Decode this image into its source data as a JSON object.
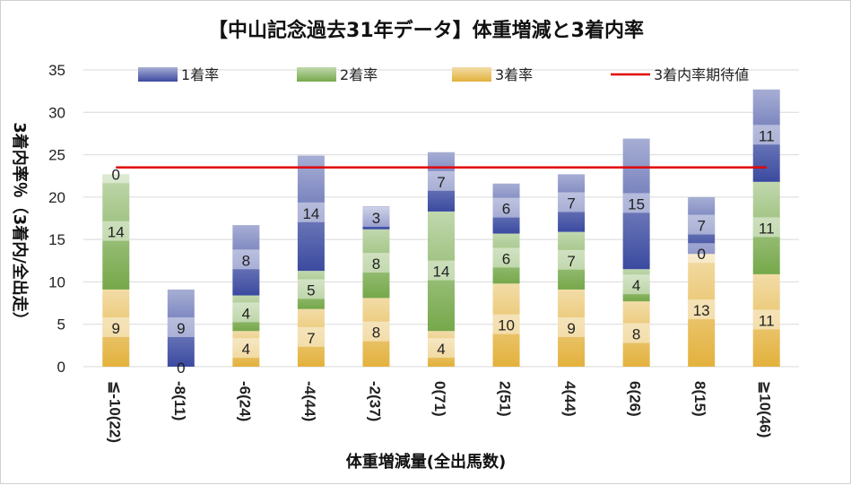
{
  "chart_data": {
    "type": "bar",
    "stacked": true,
    "title": "【中山記念過去31年データ】体重増減と3着内率",
    "xlabel": "体重増減量(全出馬数)",
    "ylabel": "3着内率％（3着内/全出走）",
    "ylim": [
      0,
      35
    ],
    "yticks": [
      0,
      5,
      10,
      15,
      20,
      25,
      30,
      35
    ],
    "grid": true,
    "legend_position": "top",
    "categories": [
      "≦-10(22)",
      "-8(11)",
      "-6(24)",
      "-4(44)",
      "-2(37)",
      "0(71)",
      "2(51)",
      "4(44)",
      "6(26)",
      "8(15)",
      "≧10(46)"
    ],
    "series": [
      {
        "name": "3着率",
        "color": "#e3b13c",
        "values": [
          9.1,
          0.0,
          4.2,
          6.8,
          8.1,
          4.2,
          9.8,
          9.1,
          7.7,
          13.3,
          10.9
        ],
        "labels": [
          "9",
          "",
          "4",
          "7",
          "8",
          "4",
          "10",
          "9",
          "8",
          "13",
          "11"
        ]
      },
      {
        "name": "2着率",
        "color": "#76a84a",
        "values": [
          13.6,
          0.0,
          4.2,
          4.5,
          8.1,
          14.1,
          5.9,
          6.8,
          3.8,
          0.0,
          10.9
        ],
        "labels": [
          "14",
          "",
          "4",
          "5",
          "8",
          "14",
          "6",
          "7",
          "4",
          "0",
          "11"
        ]
      },
      {
        "name": "1着率",
        "color": "#3b4aa0",
        "values": [
          0.0,
          9.1,
          8.3,
          13.6,
          2.7,
          7.0,
          5.9,
          6.8,
          15.4,
          6.7,
          10.9
        ],
        "labels": [
          "0",
          "9",
          "8",
          "14",
          "3",
          "7",
          "6",
          "7",
          "15",
          "7",
          "11"
        ]
      }
    ],
    "zero_labels": [
      "",
      "0",
      "",
      "",
      "",
      "",
      "",
      "",
      "",
      "",
      ""
    ],
    "expectation_line": {
      "name": "3着内率期待値",
      "value": 23.5,
      "color": "#e00000"
    }
  }
}
